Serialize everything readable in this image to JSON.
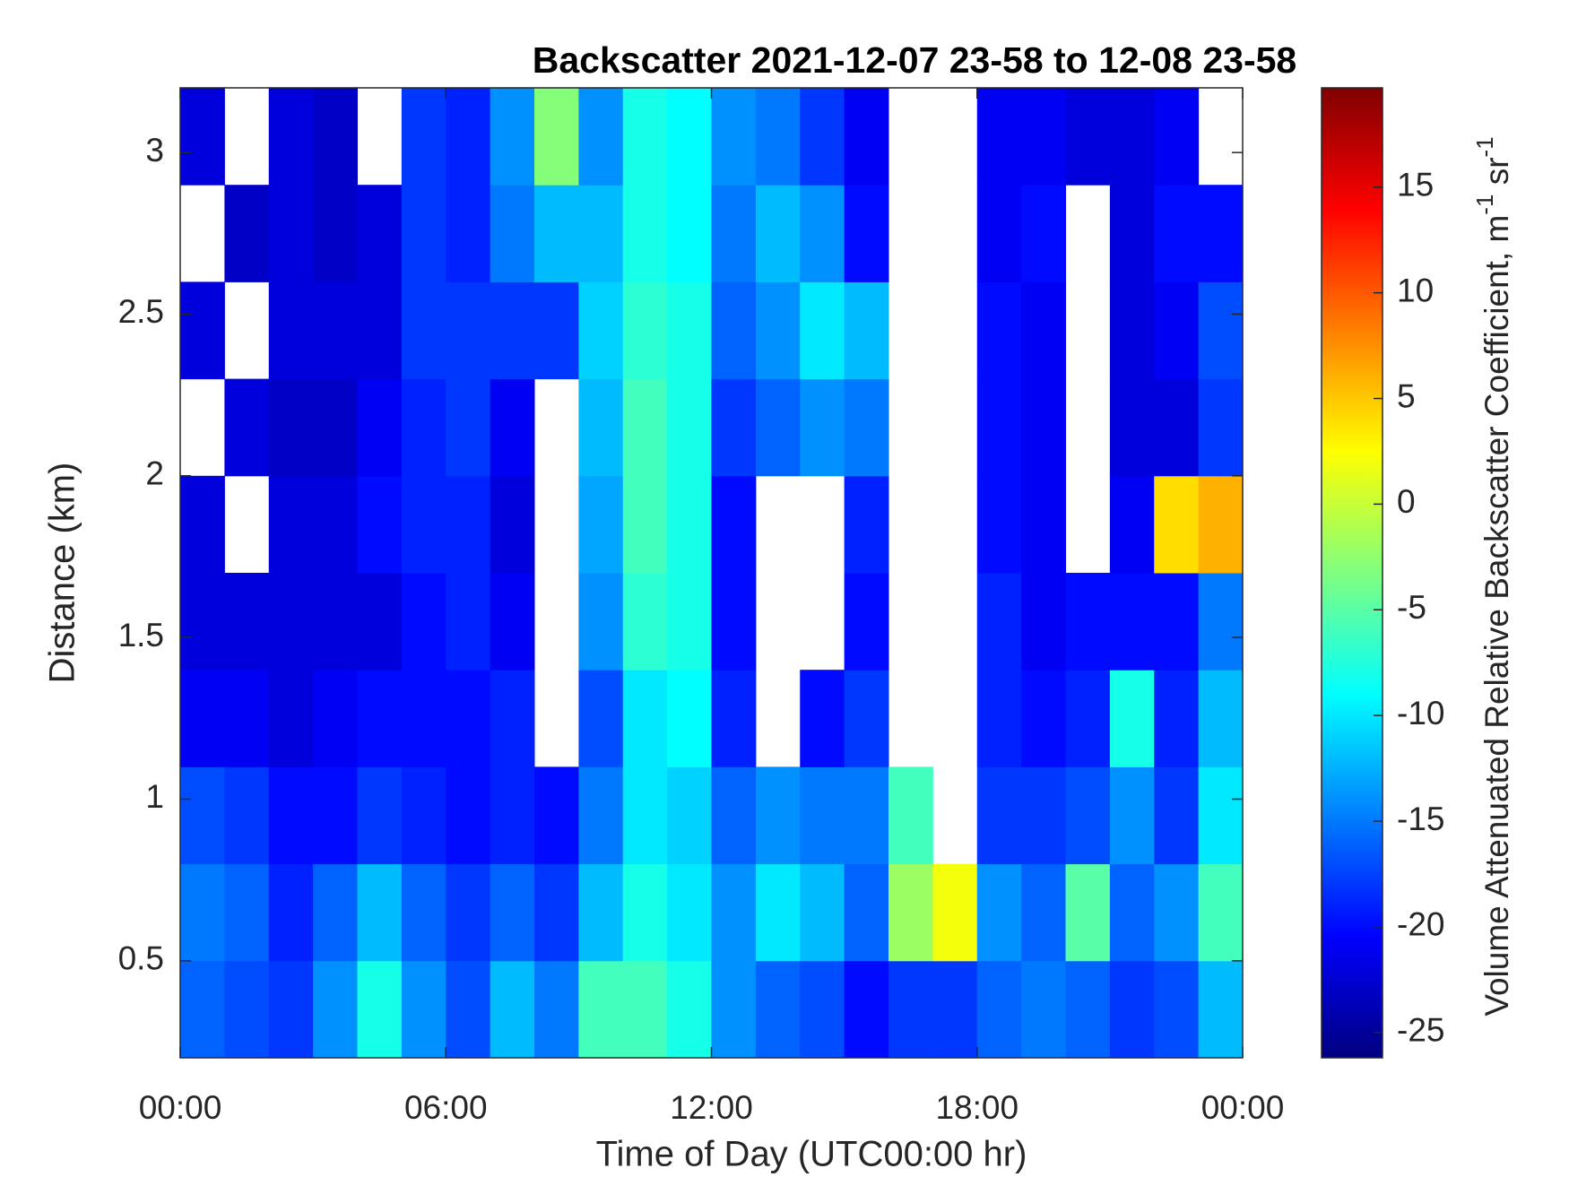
{
  "chart_data": {
    "type": "heatmap",
    "title": "Backscatter 2021-12-07 23-58 to 12-08 23-58",
    "x_label": "Time of Day (UTC00:00 hr)",
    "y_label": "Distance (km)",
    "colorbar_label": {
      "text": "Volume Attenuated Relative Backscatter Coefficient, m",
      "sup1": "-1",
      "mid": " sr",
      "sup2": "-1"
    },
    "colormap": "jet",
    "xlim": [
      0,
      24
    ],
    "xticks": [
      {
        "value": 0,
        "label": "00:00"
      },
      {
        "value": 6,
        "label": "06:00"
      },
      {
        "value": 12,
        "label": "12:00"
      },
      {
        "value": 18,
        "label": "18:00"
      },
      {
        "value": 24,
        "label": "00:00"
      }
    ],
    "ylim": [
      0.2,
      3.2
    ],
    "yticks": [
      0.5,
      1,
      1.5,
      2,
      2.5,
      3
    ],
    "clim": [
      -26.2,
      19.7
    ],
    "cticks": [
      -25,
      -20,
      -15,
      -10,
      -5,
      0,
      5,
      10,
      15
    ],
    "x_edges": [
      0,
      1,
      2,
      3,
      4,
      5,
      6,
      7,
      8,
      9,
      10,
      11,
      12,
      13,
      14,
      15,
      16,
      17,
      18,
      19,
      20,
      21,
      22,
      23,
      24
    ],
    "y_edges": [
      0.2,
      0.5,
      0.8,
      1.1,
      1.4,
      1.7,
      2.0,
      2.3,
      2.6,
      2.9,
      3.2
    ],
    "z": [
      [
        -16,
        -15,
        -17,
        -21,
        -22,
        -22,
        null,
        -22,
        null,
        -22
      ],
      [
        -17,
        -16,
        -18,
        -21,
        -22,
        null,
        -22,
        null,
        -23,
        null
      ],
      [
        -18,
        -19,
        -20,
        -22,
        -22,
        -22,
        -23,
        -22,
        -22,
        -22
      ],
      [
        -14,
        -16,
        -20,
        -21,
        -22,
        -22,
        -23,
        -22,
        -23,
        -23
      ],
      [
        -8,
        -12,
        -18,
        -20,
        -22,
        -20,
        -21,
        -22,
        -22,
        null
      ],
      [
        -14,
        -16,
        -19,
        -20,
        -20,
        -19,
        -19,
        -18,
        -18,
        -18
      ],
      [
        -17,
        -18,
        -20,
        -20,
        -19,
        -19,
        -18,
        -18,
        -19,
        -19
      ],
      [
        -12,
        -16,
        -19,
        -19,
        -21,
        -22,
        -21,
        -18,
        -15,
        -14
      ],
      [
        -15,
        -18,
        -20,
        null,
        null,
        null,
        null,
        -18,
        -12,
        -3
      ],
      [
        -6,
        -12,
        -15,
        -17,
        -14,
        -13,
        -12,
        -11,
        -12,
        -14
      ],
      [
        -6,
        -8,
        -10,
        -10,
        -7,
        -6,
        -6,
        -7,
        -8,
        -8
      ],
      [
        -8,
        -10,
        -11,
        -9,
        -8,
        -8,
        -8,
        -8,
        -9,
        -9
      ],
      [
        -14,
        -14,
        -16,
        -19,
        -20,
        -20,
        -18,
        -16,
        -15,
        -14
      ],
      [
        -16,
        -10,
        -14,
        null,
        null,
        null,
        -16,
        -14,
        -12,
        -15
      ],
      [
        -17,
        -12,
        -15,
        -20,
        null,
        null,
        -14,
        -10,
        -14,
        -18
      ],
      [
        -20,
        -16,
        -15,
        -18,
        -20,
        -19,
        -15,
        -12,
        -20,
        -21
      ],
      [
        -18,
        -2,
        -6,
        null,
        null,
        null,
        null,
        null,
        null,
        null
      ],
      [
        -18,
        2,
        null,
        null,
        null,
        null,
        null,
        null,
        null,
        null
      ],
      [
        -16,
        -14,
        -18,
        -19,
        -19,
        -20,
        -20,
        -20,
        -21,
        -21
      ],
      [
        -15,
        -16,
        -18,
        -20,
        -21,
        -21,
        -21,
        -21,
        -20,
        -21
      ],
      [
        -16,
        -5,
        -17,
        -19,
        -20,
        null,
        null,
        null,
        null,
        -22
      ],
      [
        -18,
        -16,
        -14,
        -8,
        -20,
        -21,
        -22,
        -22,
        -22,
        -22
      ],
      [
        -17,
        -14,
        -18,
        -19,
        -20,
        4,
        -22,
        -21,
        -20,
        -21
      ],
      [
        -12,
        -6,
        -10,
        -12,
        -15,
        6,
        -18,
        -17,
        -20,
        null
      ]
    ]
  }
}
